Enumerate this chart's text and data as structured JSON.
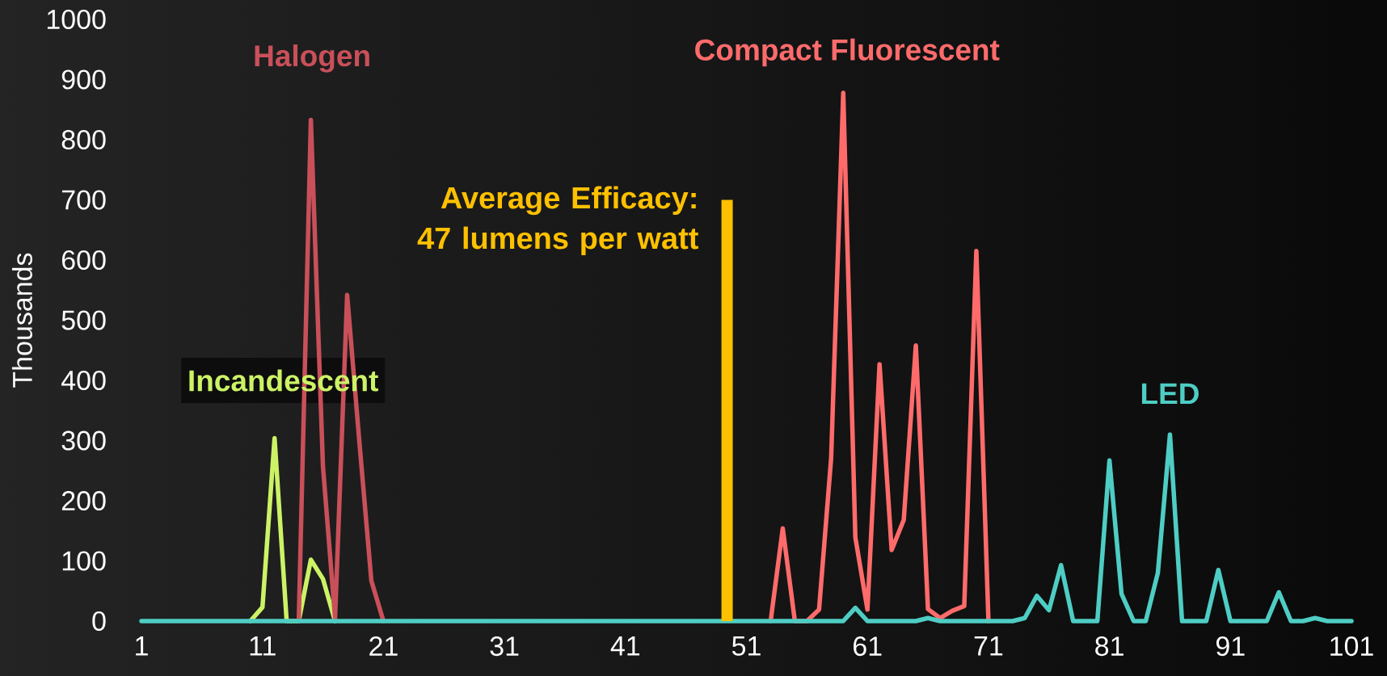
{
  "chart_data": {
    "type": "line",
    "ylabel": "Thousands",
    "x": [
      1,
      2,
      3,
      4,
      5,
      6,
      7,
      8,
      9,
      10,
      11,
      12,
      13,
      14,
      15,
      16,
      17,
      18,
      19,
      20,
      21,
      22,
      23,
      24,
      25,
      26,
      27,
      28,
      29,
      30,
      31,
      32,
      33,
      34,
      35,
      36,
      37,
      38,
      39,
      40,
      41,
      42,
      43,
      44,
      45,
      46,
      47,
      48,
      49,
      50,
      51,
      52,
      53,
      54,
      55,
      56,
      57,
      58,
      59,
      60,
      61,
      62,
      63,
      64,
      65,
      66,
      67,
      68,
      69,
      70,
      71,
      72,
      73,
      74,
      75,
      76,
      77,
      78,
      79,
      80,
      81,
      82,
      83,
      84,
      85,
      86,
      87,
      88,
      89,
      90,
      91,
      92,
      93,
      94,
      95,
      96,
      97,
      98,
      99,
      100,
      101
    ],
    "series": [
      {
        "name": "Incandescent",
        "color": "#ccf266",
        "values": [
          null,
          null,
          null,
          null,
          null,
          null,
          null,
          null,
          null,
          0,
          23,
          304,
          0,
          0,
          102,
          70,
          0,
          null,
          null,
          null,
          null,
          null,
          null,
          null,
          null,
          null,
          null,
          null,
          null,
          null,
          null,
          null,
          null,
          null,
          null,
          null,
          null,
          null,
          null,
          null,
          null,
          null,
          null,
          null,
          null,
          null,
          null,
          null,
          null,
          null,
          null,
          null,
          null,
          null,
          null,
          null,
          null,
          null,
          null,
          null,
          null,
          null,
          null,
          null,
          null,
          null,
          null,
          null,
          null,
          null,
          null,
          null,
          null,
          null,
          null,
          null,
          null,
          null,
          null,
          null,
          null,
          null,
          null,
          null,
          null,
          null,
          null,
          null,
          null,
          null,
          null,
          null,
          null,
          null,
          null,
          null,
          null,
          null,
          null,
          null,
          null
        ]
      },
      {
        "name": "Halogen",
        "color": "#c9505a",
        "values": [
          null,
          null,
          null,
          null,
          null,
          null,
          null,
          null,
          null,
          null,
          null,
          null,
          null,
          0,
          833,
          257,
          5,
          542,
          300,
          67,
          0,
          null,
          null,
          null,
          null,
          null,
          null,
          null,
          null,
          null,
          null,
          null,
          null,
          null,
          null,
          null,
          null,
          null,
          null,
          null,
          null,
          null,
          null,
          null,
          null,
          null,
          null,
          null,
          null,
          null,
          null,
          null,
          null,
          null,
          null,
          null,
          null,
          null,
          null,
          null,
          null,
          null,
          null,
          null,
          null,
          null,
          null,
          null,
          null,
          null,
          null,
          null,
          null,
          null,
          null,
          null,
          null,
          null,
          null,
          null,
          null,
          null,
          null,
          null,
          null,
          null,
          null,
          null,
          null,
          null,
          null,
          null,
          null,
          null,
          null,
          null,
          null,
          null,
          null,
          null,
          null
        ]
      },
      {
        "name": "Compact Fluorescent",
        "color": "#ff6b6b",
        "values": [
          null,
          null,
          null,
          null,
          null,
          null,
          null,
          null,
          null,
          null,
          null,
          null,
          null,
          null,
          null,
          null,
          null,
          null,
          null,
          null,
          null,
          null,
          null,
          null,
          null,
          null,
          null,
          null,
          null,
          null,
          null,
          null,
          null,
          null,
          null,
          null,
          null,
          null,
          null,
          null,
          null,
          null,
          null,
          null,
          null,
          null,
          null,
          null,
          null,
          null,
          null,
          null,
          0,
          154,
          0,
          0,
          19,
          271,
          878,
          139,
          19,
          427,
          118,
          168,
          458,
          20,
          5,
          17,
          25,
          615,
          0,
          null,
          null,
          null,
          null,
          null,
          null,
          null,
          null,
          null,
          null,
          null,
          null,
          null,
          null,
          null,
          null,
          null,
          null,
          null,
          null,
          null,
          null,
          null,
          null,
          null,
          null,
          null,
          null,
          null,
          null
        ]
      },
      {
        "name": "LED",
        "color": "#4ecdc4",
        "values": [
          0,
          0,
          0,
          0,
          0,
          0,
          0,
          0,
          0,
          0,
          0,
          0,
          0,
          0,
          0,
          0,
          0,
          0,
          0,
          0,
          0,
          0,
          0,
          0,
          0,
          0,
          0,
          0,
          0,
          0,
          0,
          0,
          0,
          0,
          0,
          0,
          0,
          0,
          0,
          0,
          0,
          0,
          0,
          0,
          0,
          0,
          0,
          0,
          0,
          0,
          0,
          0,
          0,
          0,
          0,
          0,
          0,
          0,
          0,
          22,
          0,
          0,
          0,
          0,
          0,
          5,
          0,
          0,
          0,
          0,
          0,
          0,
          0,
          5,
          42,
          18,
          93,
          0,
          0,
          0,
          267,
          45,
          0,
          0,
          80,
          310,
          0,
          0,
          0,
          85,
          0,
          0,
          0,
          0,
          48,
          0,
          0,
          5,
          0,
          0,
          0
        ]
      },
      {
        "type": "bar",
        "color": "#ffc000",
        "x": [
          49.4
        ],
        "values": [
          700
        ]
      }
    ],
    "annotations": [
      {
        "text": "Average Efficacy: 47 lumens per watt",
        "x": 49.4,
        "y": 700
      }
    ],
    "xlim": [
      1,
      101
    ],
    "xticks": [
      1,
      11,
      21,
      31,
      41,
      51,
      61,
      71,
      81,
      91,
      101
    ],
    "ylim": [
      0,
      1000
    ],
    "yticks": [
      0,
      100,
      200,
      300,
      400,
      500,
      600,
      700,
      800,
      900,
      1000
    ],
    "grid": false,
    "marker": "none",
    "line_style": "solid"
  }
}
